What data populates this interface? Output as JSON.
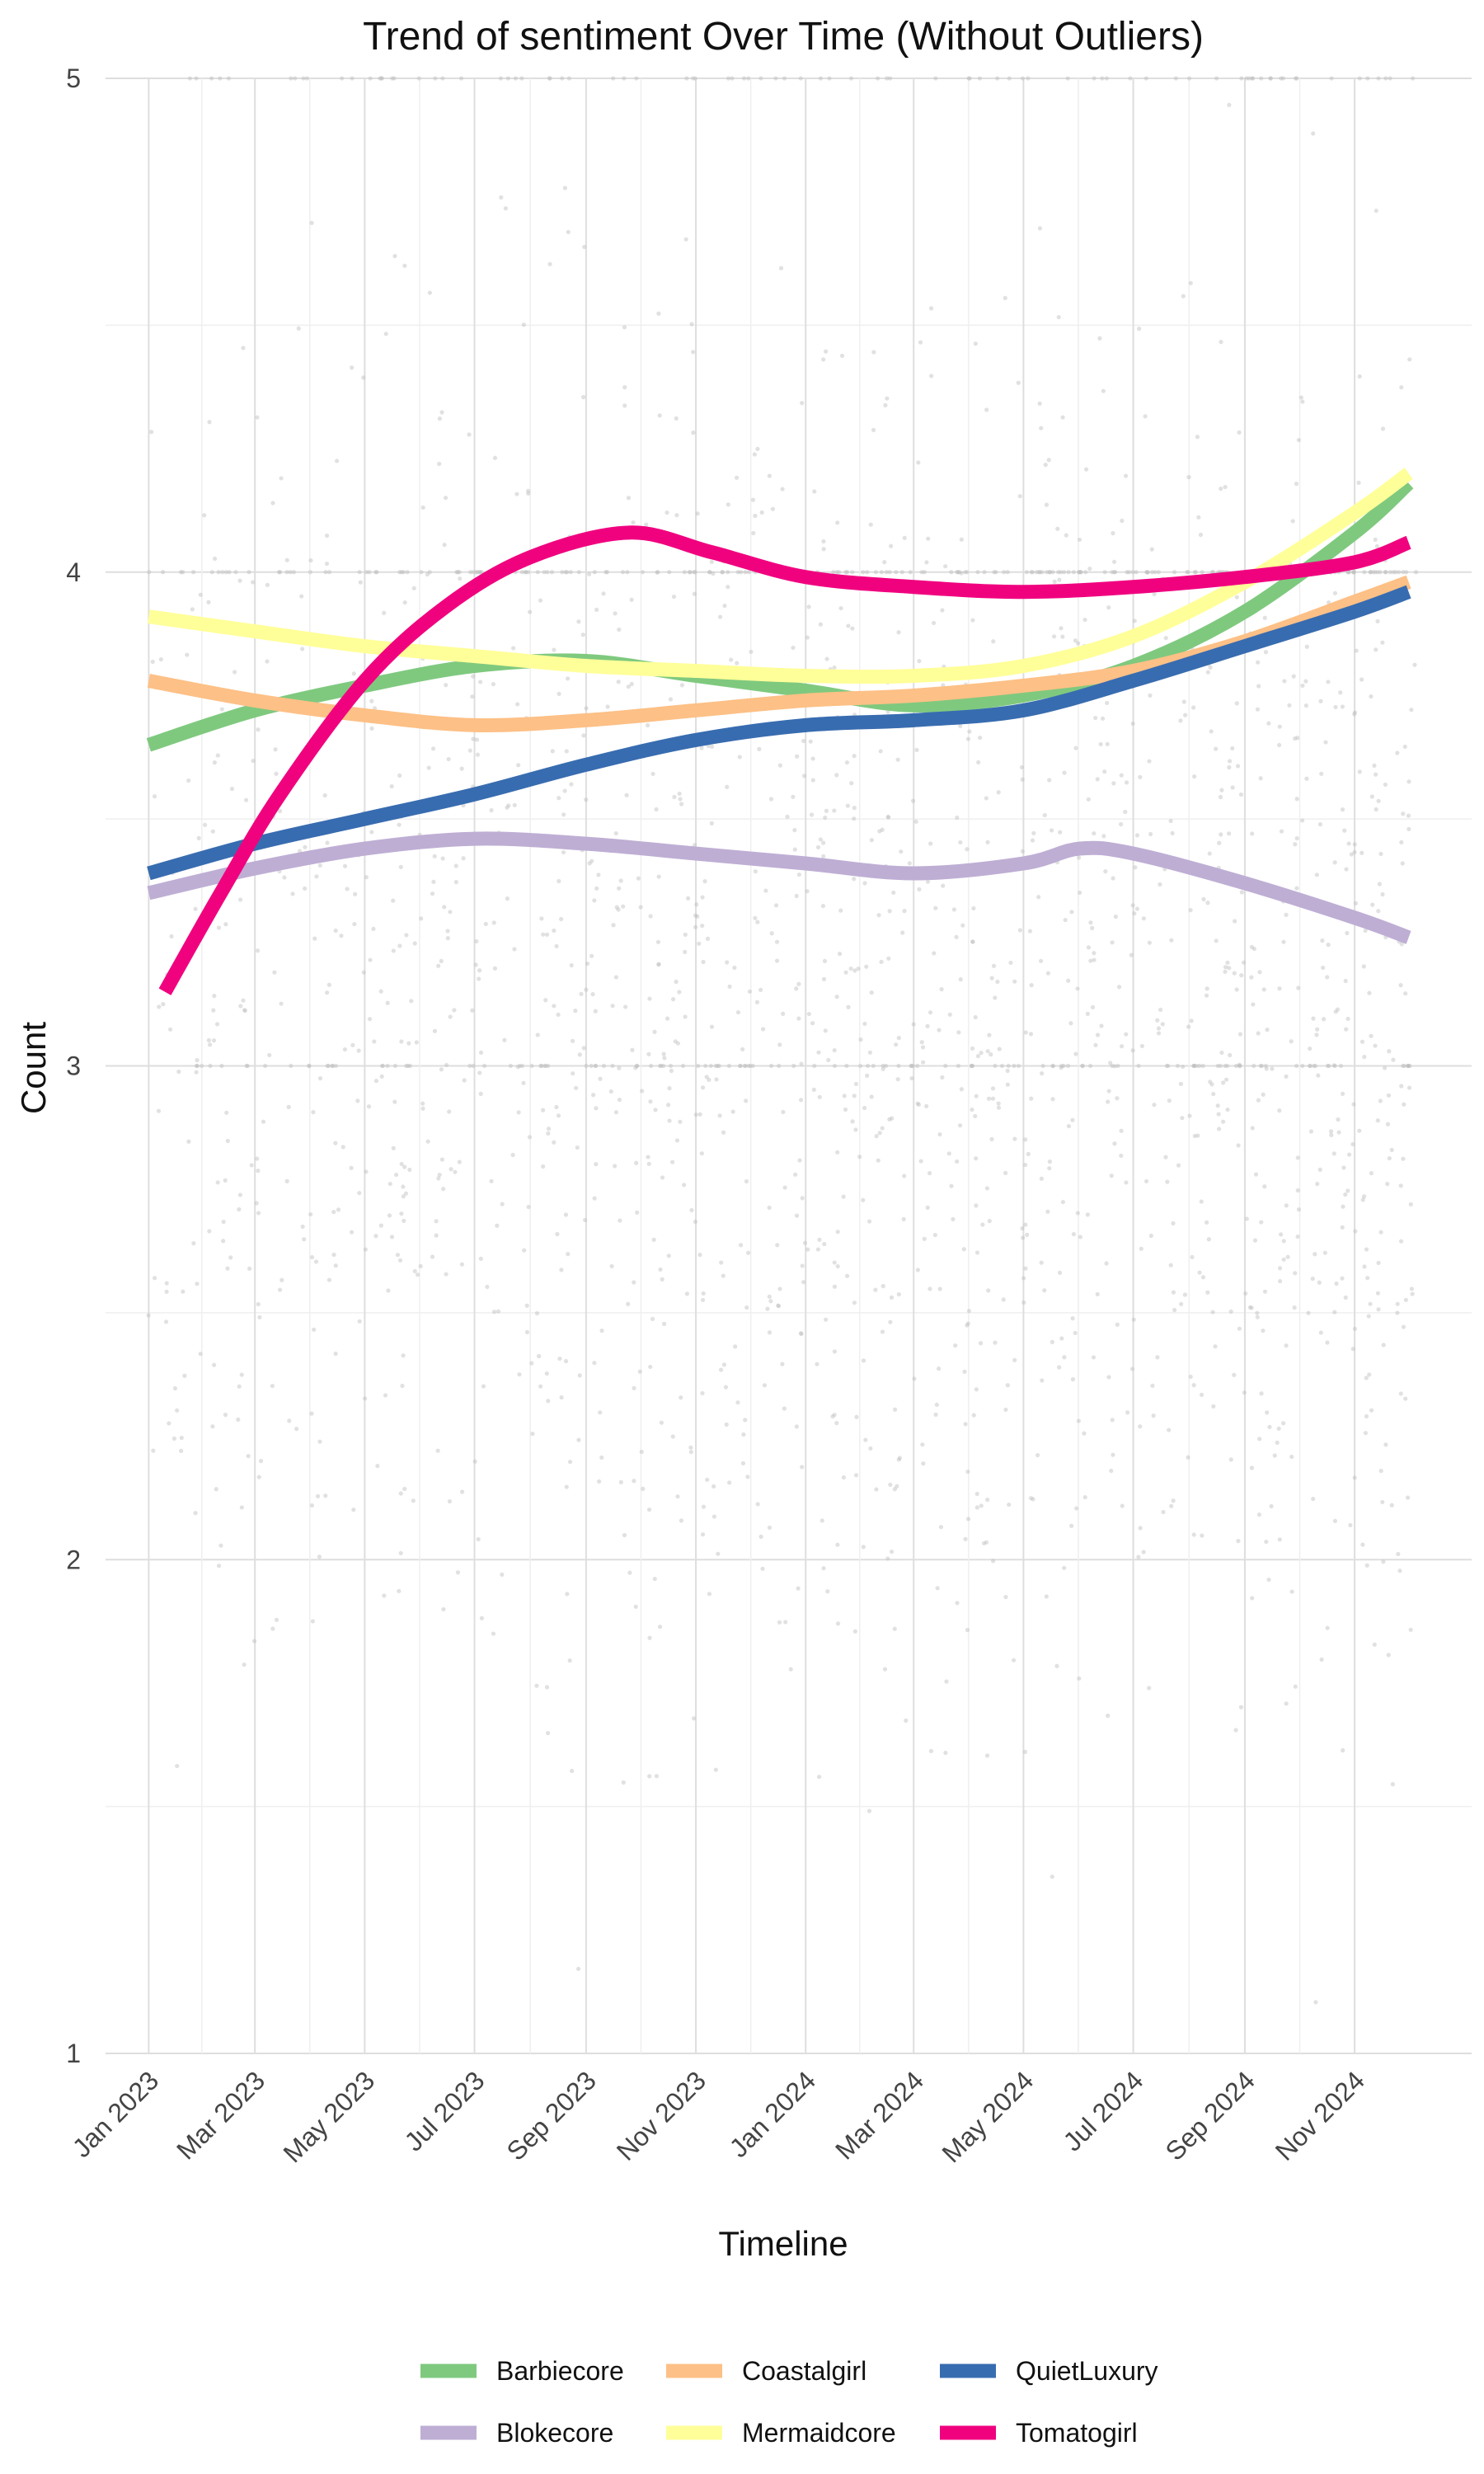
{
  "chart_data": {
    "type": "line",
    "title": "Trend of sentiment Over Time (Without Outliers)",
    "xlabel": "Timeline",
    "ylabel": "Count",
    "ylim": [
      1,
      5
    ],
    "yticks": [
      1,
      2,
      3,
      4,
      5
    ],
    "xlim": [
      "2022-12-08",
      "2025-01-05"
    ],
    "xticks": [
      {
        "date": "2023-01-01",
        "label": "Jan 2023"
      },
      {
        "date": "2023-03-01",
        "label": "Mar 2023"
      },
      {
        "date": "2023-05-01",
        "label": "May 2023"
      },
      {
        "date": "2023-07-01",
        "label": "Jul 2023"
      },
      {
        "date": "2023-09-01",
        "label": "Sep 2023"
      },
      {
        "date": "2023-11-01",
        "label": "Nov 2023"
      },
      {
        "date": "2024-01-01",
        "label": "Jan 2024"
      },
      {
        "date": "2024-03-01",
        "label": "Mar 2024"
      },
      {
        "date": "2024-05-01",
        "label": "May 2024"
      },
      {
        "date": "2024-07-01",
        "label": "Jul 2024"
      },
      {
        "date": "2024-09-01",
        "label": "Sep 2024"
      },
      {
        "date": "2024-11-01",
        "label": "Nov 2024"
      }
    ],
    "grid": true,
    "legend_position": "bottom",
    "background_points": "grey scatter of individual sentiment scores (1–5)",
    "series": [
      {
        "name": "Barbiecore",
        "color": "#7FC97F",
        "x": [
          "2023-01-01",
          "2023-03-01",
          "2023-05-01",
          "2023-07-01",
          "2023-09-01",
          "2023-11-01",
          "2024-01-01",
          "2024-03-01",
          "2024-05-01",
          "2024-07-01",
          "2024-09-01",
          "2024-11-01",
          "2024-12-01"
        ],
        "y": [
          3.65,
          3.72,
          3.77,
          3.81,
          3.82,
          3.79,
          3.76,
          3.73,
          3.75,
          3.81,
          3.92,
          4.08,
          4.18
        ]
      },
      {
        "name": "Blokecore",
        "color": "#BEAED4",
        "x": [
          "2023-01-01",
          "2023-03-01",
          "2023-05-01",
          "2023-07-01",
          "2023-09-01",
          "2023-11-01",
          "2024-01-01",
          "2024-03-01",
          "2024-05-01",
          "2024-06-01",
          "2024-07-01",
          "2024-09-01",
          "2024-11-01",
          "2024-12-01"
        ],
        "y": [
          3.35,
          3.4,
          3.44,
          3.46,
          3.45,
          3.43,
          3.41,
          3.39,
          3.41,
          3.44,
          3.43,
          3.37,
          3.3,
          3.26
        ]
      },
      {
        "name": "Coastalgirl",
        "color": "#FDC086",
        "x": [
          "2023-01-01",
          "2023-03-01",
          "2023-05-01",
          "2023-07-01",
          "2023-09-01",
          "2023-11-01",
          "2024-01-01",
          "2024-03-01",
          "2024-05-01",
          "2024-07-01",
          "2024-09-01",
          "2024-11-01",
          "2024-12-01"
        ],
        "y": [
          3.78,
          3.74,
          3.71,
          3.69,
          3.7,
          3.72,
          3.74,
          3.75,
          3.77,
          3.8,
          3.86,
          3.94,
          3.98
        ]
      },
      {
        "name": "Mermaidcore",
        "color": "#FFFF99",
        "x": [
          "2023-01-01",
          "2023-03-01",
          "2023-05-01",
          "2023-07-01",
          "2023-09-01",
          "2023-11-01",
          "2024-01-01",
          "2024-03-01",
          "2024-05-01",
          "2024-07-01",
          "2024-09-01",
          "2024-11-01",
          "2024-12-01"
        ],
        "y": [
          3.91,
          3.88,
          3.85,
          3.83,
          3.81,
          3.8,
          3.79,
          3.79,
          3.81,
          3.87,
          3.98,
          4.12,
          4.2
        ]
      },
      {
        "name": "QuietLuxury",
        "color": "#386CB0",
        "x": [
          "2023-01-01",
          "2023-03-01",
          "2023-05-01",
          "2023-07-01",
          "2023-09-01",
          "2023-11-01",
          "2024-01-01",
          "2024-03-01",
          "2024-05-01",
          "2024-07-01",
          "2024-09-01",
          "2024-11-01",
          "2024-12-01"
        ],
        "y": [
          3.39,
          3.45,
          3.5,
          3.55,
          3.61,
          3.66,
          3.69,
          3.7,
          3.72,
          3.78,
          3.85,
          3.92,
          3.96
        ]
      },
      {
        "name": "Tomatogirl",
        "color": "#F0027F",
        "x": [
          "2023-01-10",
          "2023-02-10",
          "2023-03-15",
          "2023-05-01",
          "2023-06-15",
          "2023-08-01",
          "2023-09-25",
          "2023-11-10",
          "2024-01-01",
          "2024-03-01",
          "2024-05-01",
          "2024-07-01",
          "2024-09-01",
          "2024-11-01",
          "2024-12-01"
        ],
        "y": [
          3.15,
          3.35,
          3.55,
          3.78,
          3.93,
          4.03,
          4.08,
          4.04,
          3.99,
          3.97,
          3.96,
          3.97,
          3.99,
          4.02,
          4.06
        ]
      }
    ]
  }
}
